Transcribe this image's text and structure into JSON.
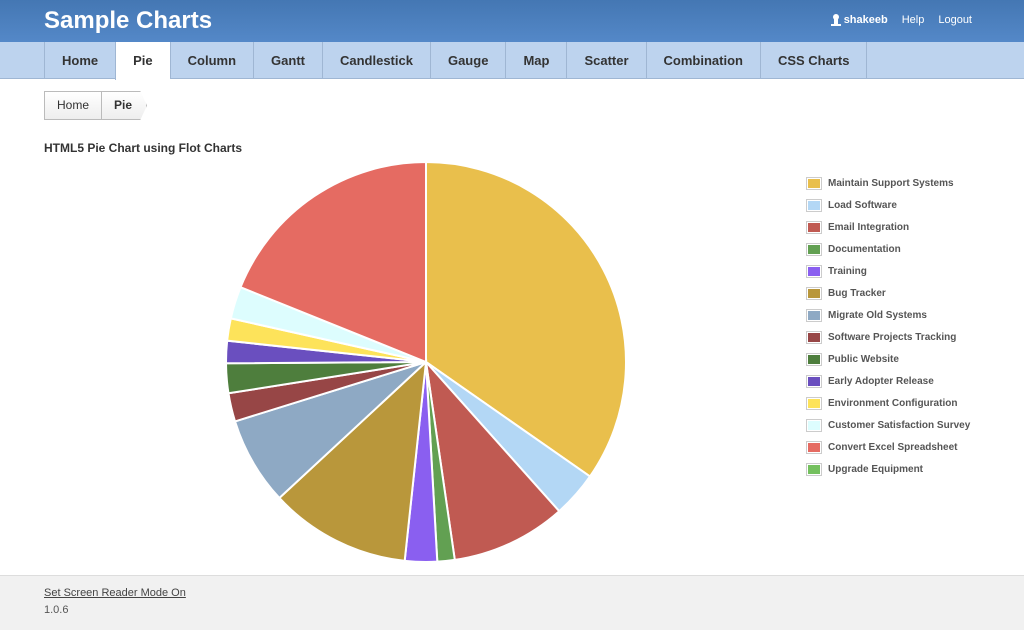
{
  "header": {
    "brand": "Sample Charts",
    "user": "shakeeb",
    "help": "Help",
    "logout": "Logout"
  },
  "nav": [
    "Home",
    "Pie",
    "Column",
    "Gantt",
    "Candlestick",
    "Gauge",
    "Map",
    "Scatter",
    "Combination",
    "CSS Charts"
  ],
  "breadcrumb": [
    "Home",
    "Pie"
  ],
  "footer": {
    "link": "Set Screen Reader Mode On",
    "version": "1.0.6"
  },
  "chart_data": {
    "type": "pie",
    "title": "HTML5 Pie Chart using Flot Charts",
    "legend_position": "right",
    "units": "percent",
    "categories": [
      "Maintain Support Systems",
      "Load Software",
      "Email Integration",
      "Documentation",
      "Training",
      "Bug Tracker",
      "Migrate Old Systems",
      "Software Projects Tracking",
      "Public Website",
      "Early Adopter Release",
      "Environment Configuration",
      "Customer Satisfaction Survey",
      "Convert Excel Spreadsheet",
      "Upgrade Equipment"
    ],
    "values": [
      34.7,
      3.7,
      9.3,
      1.4,
      2.6,
      11.4,
      7.1,
      2.3,
      2.4,
      1.8,
      1.8,
      2.6,
      18.9,
      0
    ],
    "colors": [
      "#e9bf4c",
      "#b3d7f5",
      "#c05a52",
      "#62a052",
      "#8a5ff0",
      "#b9973b",
      "#8ea9c4",
      "#974646",
      "#4e7e3d",
      "#6a4fbf",
      "#fde35a",
      "#ddfdfe",
      "#e56b62",
      "#74c05e"
    ]
  }
}
